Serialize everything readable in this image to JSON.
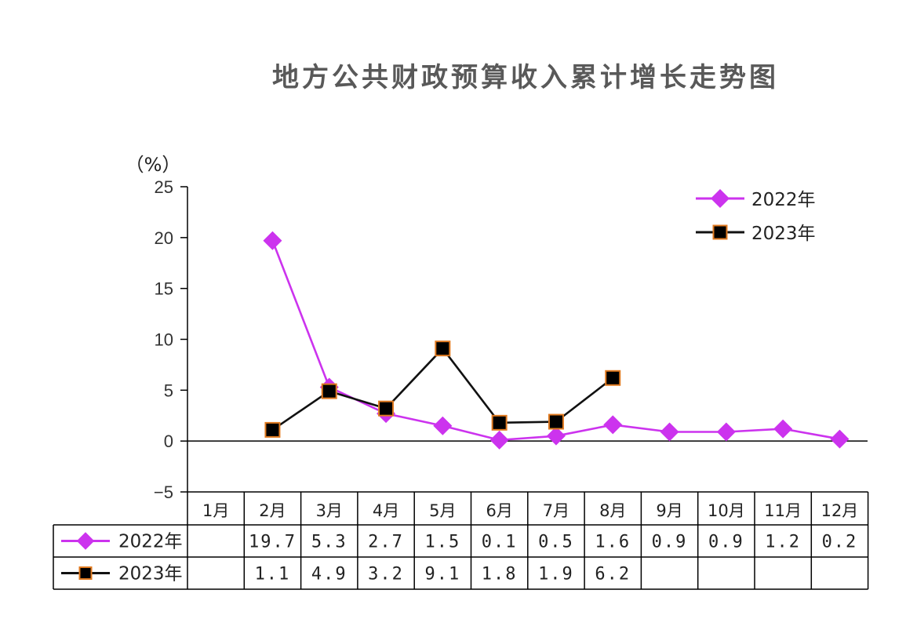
{
  "chart_data": {
    "type": "line",
    "title": "地方公共财政预算收入累计增长走势图",
    "unit_label": "（%）",
    "ylim": [
      -5,
      25
    ],
    "yticks": [
      -5,
      0,
      5,
      10,
      15,
      20,
      25
    ],
    "ytick_labels": [
      "−5",
      "0",
      "5",
      "10",
      "15",
      "20",
      "25"
    ],
    "categories": [
      "1月",
      "2月",
      "3月",
      "4月",
      "5月",
      "6月",
      "7月",
      "8月",
      "9月",
      "10月",
      "11月",
      "12月"
    ],
    "series": [
      {
        "name": "2022年",
        "color": "#cc33ee",
        "marker": "diamond",
        "values": [
          null,
          19.7,
          5.3,
          2.7,
          1.5,
          0.1,
          0.5,
          1.6,
          0.9,
          0.9,
          1.2,
          0.2
        ],
        "table_values": [
          "",
          "19.7",
          "5.3",
          "2.7",
          "1.5",
          "0.1",
          "0.5",
          "1.6",
          "0.9",
          "0.9",
          "1.2",
          "0.2"
        ]
      },
      {
        "name": "2023年",
        "color": "#111111",
        "marker_fill": "#000000",
        "marker_edge": "#e07a20",
        "marker": "square",
        "values": [
          null,
          1.1,
          4.9,
          3.2,
          9.1,
          1.8,
          1.9,
          6.2,
          null,
          null,
          null,
          null
        ],
        "table_values": [
          "",
          "1.1",
          "4.9",
          "3.2",
          "9.1",
          "1.8",
          "1.9",
          "6.2",
          "",
          "",
          "",
          ""
        ]
      }
    ],
    "legend_position": "top-right",
    "grid": false,
    "data_table": true
  }
}
